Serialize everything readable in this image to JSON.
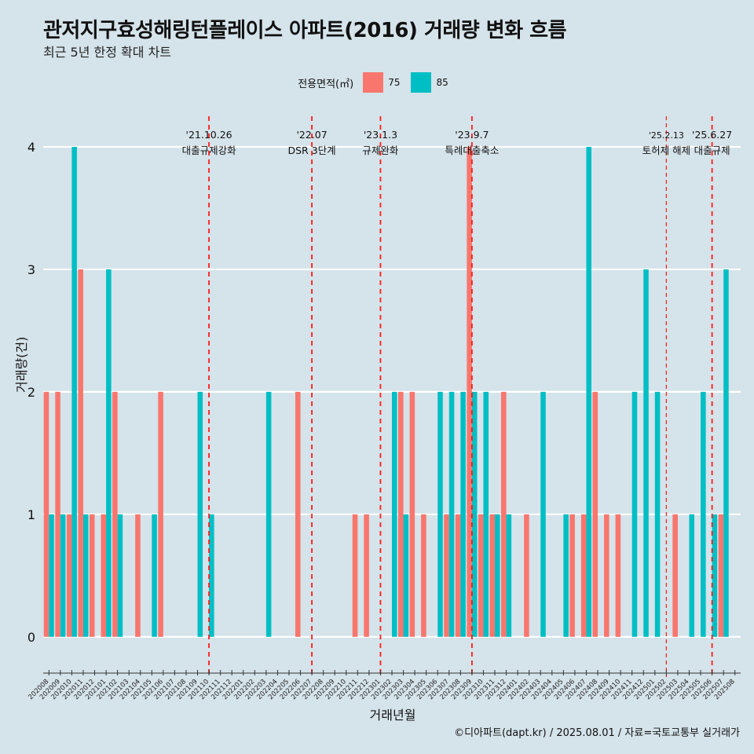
{
  "title": "관저지구효성해링턴플레이스 아파트(2016) 거래량 변화 흐름",
  "subtitle": "최근 5년 한정 확대 차트",
  "caption": "©디아파트(dapt.kr) / 2025.08.01 / 자료=국토교통부 실거래가",
  "legend": {
    "title": "전용면적(㎡)",
    "items": [
      {
        "label": "75",
        "color": "#f8766d"
      },
      {
        "label": "85",
        "color": "#00bfc4"
      }
    ]
  },
  "chart_data": {
    "type": "bar",
    "xlabel": "거래년월",
    "ylabel": "거래량(건)",
    "ylim": [
      -0.2,
      4.25
    ],
    "yticks": [
      0,
      1,
      2,
      3,
      4
    ],
    "grid": true,
    "legend_position": "top",
    "categories": [
      "202008",
      "202009",
      "202010",
      "202011",
      "202012",
      "202101",
      "202102",
      "202103",
      "202104",
      "202105",
      "202106",
      "202107",
      "202108",
      "202109",
      "202110",
      "202111",
      "202112",
      "202201",
      "202202",
      "202203",
      "202204",
      "202205",
      "202206",
      "202207",
      "202208",
      "202209",
      "202210",
      "202211",
      "202212",
      "202301",
      "202302",
      "202303",
      "202304",
      "202305",
      "202306",
      "202307",
      "202308",
      "202309",
      "202310",
      "202311",
      "202312",
      "202401",
      "202402",
      "202403",
      "202404",
      "202405",
      "202406",
      "202407",
      "202408",
      "202409",
      "202410",
      "202411",
      "202412",
      "202501",
      "202502",
      "202503",
      "202504",
      "202505",
      "202506",
      "202507",
      "202508"
    ],
    "series": [
      {
        "name": "75",
        "color": "#f8766d",
        "values": [
          2,
          2,
          1,
          3,
          1,
          1,
          2,
          0,
          1,
          0,
          2,
          0,
          0,
          0,
          0,
          0,
          0,
          0,
          0,
          0,
          0,
          0,
          2,
          0,
          0,
          0,
          0,
          1,
          1,
          0,
          0,
          2,
          2,
          1,
          0,
          1,
          1,
          4,
          1,
          1,
          2,
          0,
          1,
          0,
          0,
          0,
          1,
          1,
          2,
          1,
          1,
          0,
          0,
          0,
          0,
          1,
          0,
          0,
          0,
          1,
          0
        ]
      },
      {
        "name": "85",
        "color": "#00bfc4",
        "values": [
          1,
          1,
          4,
          1,
          0,
          3,
          1,
          0,
          0,
          1,
          0,
          0,
          0,
          2,
          1,
          0,
          0,
          0,
          0,
          2,
          0,
          0,
          0,
          0,
          0,
          0,
          0,
          0,
          0,
          0,
          2,
          1,
          0,
          0,
          2,
          2,
          2,
          2,
          2,
          1,
          1,
          0,
          0,
          2,
          0,
          1,
          0,
          4,
          0,
          0,
          0,
          2,
          3,
          2,
          0,
          0,
          1,
          2,
          1,
          3,
          0
        ]
      }
    ],
    "annotations": [
      {
        "x": "202110",
        "date": "'21.10.26",
        "label": "대출규제강화",
        "style": "dashed"
      },
      {
        "x": "202207",
        "date": "'22.07",
        "label": "DSR 3단계",
        "style": "dashed"
      },
      {
        "x": "202301",
        "date": "'23.1.3",
        "label": "규제완화",
        "style": "dashed"
      },
      {
        "x": "202309",
        "date": "'23.9.7",
        "label": "특례대출축소",
        "style": "dashed"
      },
      {
        "x": "202502",
        "date": "'25.2.13",
        "label": "토허제 해제",
        "style": "dashed-thin"
      },
      {
        "x": "202506",
        "date": "'25.6.27",
        "label": "대출규제",
        "style": "dashed"
      }
    ]
  }
}
